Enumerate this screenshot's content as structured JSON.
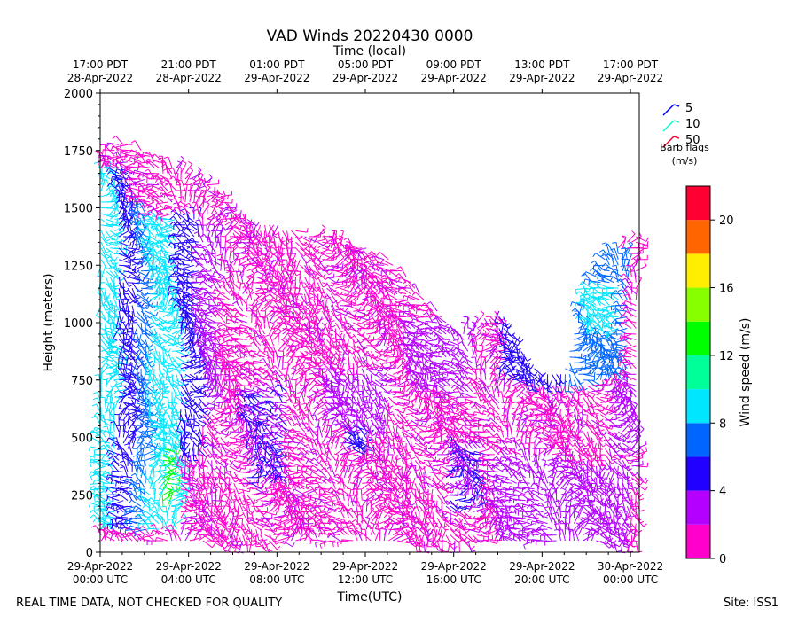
{
  "chart_data": {
    "type": "scatter",
    "title": "VAD Winds 20220430 0000",
    "top_axis_label": "Time (local)",
    "xlabel": "Time(UTC)",
    "ylabel": "Height (meters)",
    "ylim": [
      0,
      2000
    ],
    "yticks": [
      0,
      250,
      500,
      750,
      1000,
      1250,
      1500,
      1750,
      2000
    ],
    "xlim_utc_hours": [
      0,
      24.4
    ],
    "bottom_ticks": [
      {
        "hour": 0,
        "line1": "29-Apr-2022",
        "line2": "00:00 UTC"
      },
      {
        "hour": 4,
        "line1": "29-Apr-2022",
        "line2": "04:00 UTC"
      },
      {
        "hour": 8,
        "line1": "29-Apr-2022",
        "line2": "08:00 UTC"
      },
      {
        "hour": 12,
        "line1": "29-Apr-2022",
        "line2": "12:00 UTC"
      },
      {
        "hour": 16,
        "line1": "29-Apr-2022",
        "line2": "16:00 UTC"
      },
      {
        "hour": 20,
        "line1": "29-Apr-2022",
        "line2": "20:00 UTC"
      },
      {
        "hour": 24,
        "line1": "30-Apr-2022",
        "line2": "00:00 UTC"
      }
    ],
    "top_ticks": [
      {
        "hour": 0,
        "line1": "17:00 PDT",
        "line2": "28-Apr-2022"
      },
      {
        "hour": 4,
        "line1": "21:00 PDT",
        "line2": "28-Apr-2022"
      },
      {
        "hour": 8,
        "line1": "01:00 PDT",
        "line2": "29-Apr-2022"
      },
      {
        "hour": 12,
        "line1": "05:00 PDT",
        "line2": "29-Apr-2022"
      },
      {
        "hour": 16,
        "line1": "09:00 PDT",
        "line2": "29-Apr-2022"
      },
      {
        "hour": 20,
        "line1": "13:00 PDT",
        "line2": "29-Apr-2022"
      },
      {
        "hour": 24,
        "line1": "17:00 PDT",
        "line2": "29-Apr-2022"
      }
    ],
    "barb_legend": {
      "entries": [
        {
          "label": "5",
          "color": "#0000ff"
        },
        {
          "label": "10",
          "color": "#00ffcc"
        },
        {
          "label": "50",
          "color": "#ff0033"
        }
      ],
      "title": "Barb flags",
      "units": "(m/s)"
    },
    "colorbar": {
      "label": "Wind speed (m/s)",
      "range": [
        0,
        22
      ],
      "ticks": [
        0,
        4,
        8,
        12,
        16,
        20
      ],
      "bins": [
        {
          "from": 0,
          "to": 2,
          "color": "#ff00cc"
        },
        {
          "from": 2,
          "to": 4,
          "color": "#b400ff"
        },
        {
          "from": 4,
          "to": 6,
          "color": "#2200ff"
        },
        {
          "from": 6,
          "to": 8,
          "color": "#0066ff"
        },
        {
          "from": 8,
          "to": 10,
          "color": "#00e6ff"
        },
        {
          "from": 10,
          "to": 12,
          "color": "#00ff99"
        },
        {
          "from": 12,
          "to": 14,
          "color": "#00ff00"
        },
        {
          "from": 14,
          "to": 16,
          "color": "#88ff00"
        },
        {
          "from": 16,
          "to": 18,
          "color": "#ffee00"
        },
        {
          "from": 18,
          "to": 20,
          "color": "#ff6600"
        },
        {
          "from": 20,
          "to": 22,
          "color": "#ff0033"
        }
      ]
    },
    "top_height_profile": [
      [
        0,
        1700
      ],
      [
        1,
        1800
      ],
      [
        2,
        1750
      ],
      [
        3,
        1700
      ],
      [
        4,
        1650
      ],
      [
        5,
        1600
      ],
      [
        6,
        1500
      ],
      [
        7,
        1450
      ],
      [
        8,
        1430
      ],
      [
        9,
        1400
      ],
      [
        10,
        1380
      ],
      [
        11,
        1350
      ],
      [
        12,
        1330
      ],
      [
        13,
        1280
      ],
      [
        14,
        1200
      ],
      [
        15,
        1080
      ],
      [
        16,
        960
      ],
      [
        17,
        1000
      ],
      [
        18,
        1070
      ],
      [
        19,
        900
      ],
      [
        20,
        780
      ],
      [
        21,
        800
      ],
      [
        22,
        1150
      ],
      [
        23,
        1300
      ],
      [
        24.4,
        1400
      ]
    ],
    "speed_regions": [
      {
        "x": [
          0,
          0.7
        ],
        "y": [
          100,
          1650
        ],
        "speed": 9
      },
      {
        "x": [
          0.7,
          1.6
        ],
        "y": [
          100,
          1650
        ],
        "speed": 5
      },
      {
        "x": [
          1.6,
          2.2
        ],
        "y": [
          100,
          1500
        ],
        "speed": 7
      },
      {
        "x": [
          2.2,
          3.5
        ],
        "y": [
          100,
          1450
        ],
        "speed": 9
      },
      {
        "x": [
          2.7,
          3.1
        ],
        "y": [
          200,
          450
        ],
        "speed": 13
      },
      {
        "x": [
          3.5,
          4.5
        ],
        "y": [
          450,
          1450
        ],
        "speed": 5
      },
      {
        "x": [
          4.5,
          5.5
        ],
        "y": [
          650,
          1400
        ],
        "speed": 3
      },
      {
        "x": [
          6.5,
          8.5
        ],
        "y": [
          300,
          700
        ],
        "speed": 4
      },
      {
        "x": [
          10,
          13
        ],
        "y": [
          550,
          800
        ],
        "speed": 3
      },
      {
        "x": [
          11,
          12
        ],
        "y": [
          450,
          550
        ],
        "speed": 5
      },
      {
        "x": [
          14,
          17
        ],
        "y": [
          700,
          1000
        ],
        "speed": 3
      },
      {
        "x": [
          15.5,
          17.5
        ],
        "y": [
          200,
          450
        ],
        "speed": 4
      },
      {
        "x": [
          18,
          22
        ],
        "y": [
          750,
          1050
        ],
        "speed": 5
      },
      {
        "x": [
          21,
          24
        ],
        "y": [
          750,
          1300
        ],
        "speed": 7
      },
      {
        "x": [
          22,
          23.5
        ],
        "y": [
          950,
          1150
        ],
        "speed": 9
      },
      {
        "x": [
          23,
          24.4
        ],
        "y": [
          450,
          700
        ],
        "speed": 3
      },
      {
        "x": [
          18,
          24
        ],
        "y": [
          50,
          400
        ],
        "speed": 3
      }
    ]
  },
  "footer": {
    "disclaimer": "REAL TIME DATA, NOT CHECKED FOR QUALITY",
    "site": "Site: ISS1"
  }
}
